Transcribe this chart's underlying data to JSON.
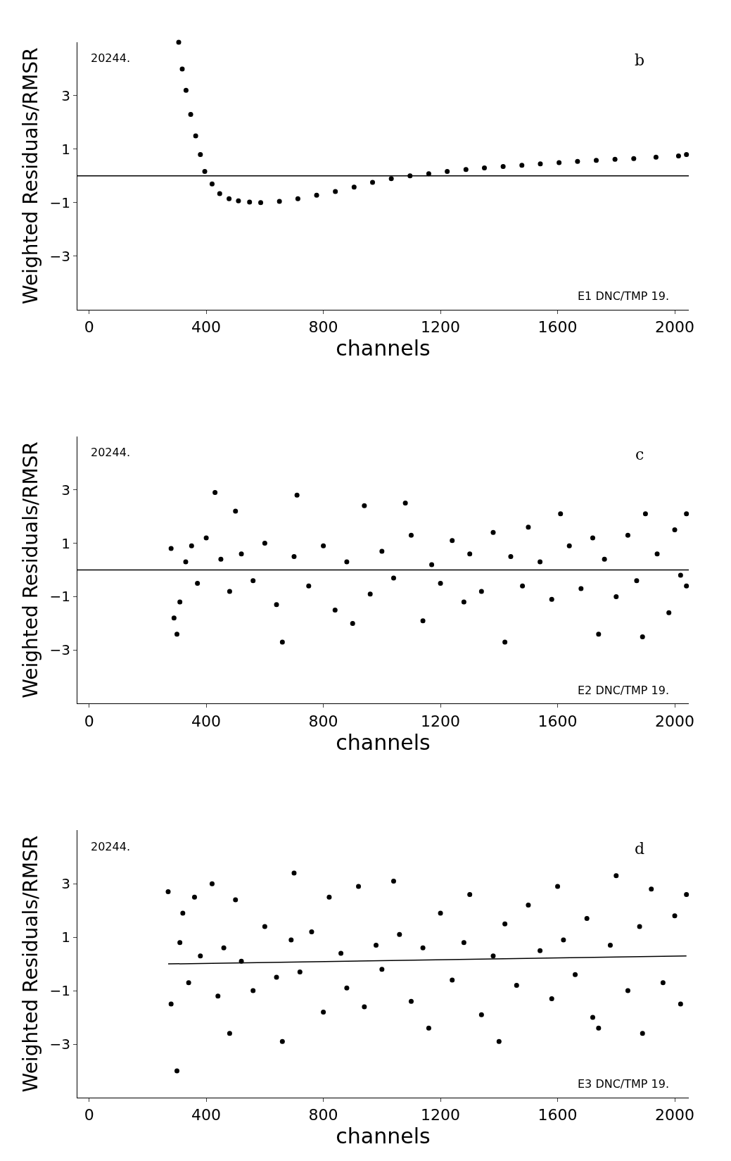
{
  "chart_data": [
    {
      "type": "scatter",
      "xlabel": "channels",
      "ylabel": "Weighted Residuals/RMSR",
      "xlim": [
        -40,
        2048
      ],
      "ylim": [
        -5,
        5
      ],
      "xticks": [
        0,
        400,
        800,
        1200,
        1600,
        2000
      ],
      "yticks": [
        3,
        1,
        -1,
        -3
      ],
      "marker": "circle",
      "annotations": [
        "20244.",
        "b",
        "E1 DNC/TMP 19."
      ],
      "ref_lines": [
        {
          "axis": "y",
          "value": 0,
          "color": "#000000"
        }
      ],
      "series": [
        {
          "color": "#000000",
          "x": [
            306,
            318,
            331,
            347,
            364,
            380,
            395,
            420,
            446,
            478,
            510,
            548,
            586,
            650,
            713,
            777,
            841,
            905,
            968,
            1032,
            1096,
            1160,
            1223,
            1287,
            1350,
            1414,
            1478,
            1541,
            1605,
            1668,
            1732,
            1796,
            1860,
            1936,
            2013,
            2040
          ],
          "values": [
            5.0,
            4.0,
            3.2,
            2.3,
            1.5,
            0.8,
            0.17,
            -0.3,
            -0.66,
            -0.85,
            -0.93,
            -0.98,
            -1.0,
            -0.95,
            -0.85,
            -0.72,
            -0.58,
            -0.42,
            -0.24,
            -0.1,
            0.0,
            0.08,
            0.17,
            0.24,
            0.3,
            0.35,
            0.4,
            0.45,
            0.5,
            0.54,
            0.58,
            0.62,
            0.65,
            0.7,
            0.75,
            0.8
          ]
        }
      ]
    },
    {
      "type": "scatter",
      "xlabel": "channels",
      "ylabel": "Weighted Residuals/RMSR",
      "xlim": [
        -40,
        2048
      ],
      "ylim": [
        -5,
        5
      ],
      "xticks": [
        0,
        400,
        800,
        1200,
        1600,
        2000
      ],
      "yticks": [
        3,
        1,
        -1,
        -3
      ],
      "marker": "circle",
      "annotations": [
        "20244.",
        "c",
        "E2 DNC/TMP 19."
      ],
      "ref_lines": [
        {
          "axis": "y",
          "value": 0,
          "color": "#000000"
        }
      ],
      "series": [
        {
          "color": "#000000",
          "x": [
            280,
            290,
            300,
            310,
            330,
            350,
            370,
            400,
            430,
            450,
            480,
            500,
            520,
            560,
            600,
            640,
            660,
            700,
            710,
            750,
            800,
            840,
            880,
            900,
            940,
            960,
            1000,
            1040,
            1080,
            1100,
            1140,
            1170,
            1200,
            1240,
            1280,
            1300,
            1340,
            1380,
            1420,
            1440,
            1480,
            1500,
            1540,
            1580,
            1610,
            1640,
            1680,
            1720,
            1740,
            1760,
            1800,
            1840,
            1870,
            1890,
            1900,
            1940,
            1980,
            2000,
            2020,
            2040,
            2040
          ],
          "values": [
            0.8,
            -1.8,
            -2.4,
            -1.2,
            0.3,
            0.9,
            -0.5,
            1.2,
            2.9,
            0.4,
            -0.8,
            2.2,
            0.6,
            -0.4,
            1.0,
            -1.3,
            -2.7,
            0.5,
            2.8,
            -0.6,
            0.9,
            -1.5,
            0.3,
            -2.0,
            2.4,
            -0.9,
            0.7,
            -0.3,
            2.5,
            1.3,
            -1.9,
            0.2,
            -0.5,
            1.1,
            -1.2,
            0.6,
            -0.8,
            1.4,
            -2.7,
            0.5,
            -0.6,
            1.6,
            0.3,
            -1.1,
            2.1,
            0.9,
            -0.7,
            1.2,
            -2.4,
            0.4,
            -1.0,
            1.3,
            -0.4,
            -2.5,
            2.1,
            0.6,
            -1.6,
            1.5,
            -0.2,
            2.1,
            -0.6
          ]
        }
      ]
    },
    {
      "type": "scatter",
      "xlabel": "channels",
      "ylabel": "Weighted Residuals/RMSR",
      "xlim": [
        -40,
        2048
      ],
      "ylim": [
        -5,
        5
      ],
      "xticks": [
        0,
        400,
        800,
        1200,
        1600,
        2000
      ],
      "yticks": [
        3,
        1,
        -1,
        -3
      ],
      "marker": "circle",
      "annotations": [
        "20244.",
        "d",
        "E3 DNC/TMP 19."
      ],
      "series": [
        {
          "color": "#000000",
          "x": [
            270,
            280,
            300,
            310,
            320,
            340,
            360,
            380,
            420,
            440,
            460,
            480,
            500,
            520,
            560,
            600,
            640,
            660,
            690,
            700,
            720,
            760,
            800,
            820,
            860,
            880,
            920,
            940,
            980,
            1000,
            1040,
            1060,
            1100,
            1140,
            1160,
            1200,
            1240,
            1280,
            1300,
            1340,
            1380,
            1400,
            1420,
            1460,
            1500,
            1540,
            1580,
            1600,
            1620,
            1660,
            1700,
            1720,
            1740,
            1780,
            1800,
            1840,
            1880,
            1890,
            1920,
            1960,
            2000,
            2020,
            2040
          ],
          "values": [
            2.7,
            -1.5,
            -4.0,
            0.8,
            1.9,
            -0.7,
            2.5,
            0.3,
            3.0,
            -1.2,
            0.6,
            -2.6,
            2.4,
            0.1,
            -1.0,
            1.4,
            -0.5,
            -2.9,
            0.9,
            3.4,
            -0.3,
            1.2,
            -1.8,
            2.5,
            0.4,
            -0.9,
            2.9,
            -1.6,
            0.7,
            -0.2,
            3.1,
            1.1,
            -1.4,
            0.6,
            -2.4,
            1.9,
            -0.6,
            0.8,
            2.6,
            -1.9,
            0.3,
            -2.9,
            1.5,
            -0.8,
            2.2,
            0.5,
            -1.3,
            2.9,
            0.9,
            -0.4,
            1.7,
            -2.0,
            -2.4,
            0.7,
            3.3,
            -1.0,
            1.4,
            -2.6,
            2.8,
            -0.7,
            1.8,
            -1.5,
            2.6
          ]
        },
        {
          "type": "line",
          "marker": "none",
          "color": "#000000",
          "x": [
            270,
            2040
          ],
          "values": [
            0.0,
            0.3
          ]
        }
      ]
    }
  ]
}
